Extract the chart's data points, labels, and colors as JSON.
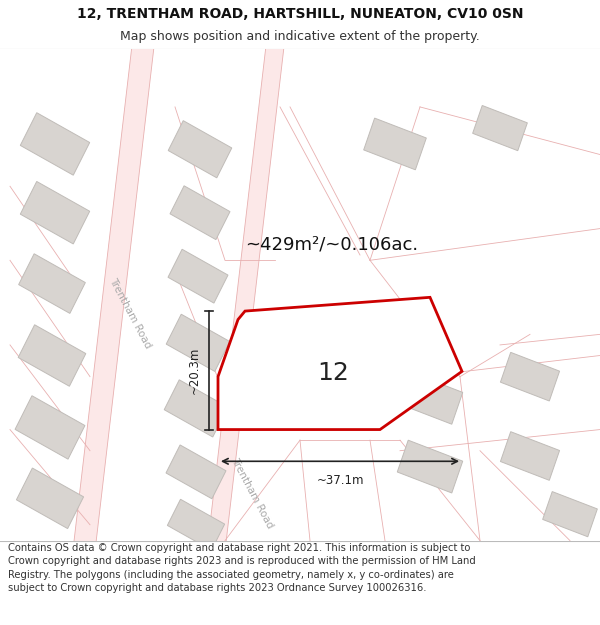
{
  "title_line1": "12, TRENTHAM ROAD, HARTSHILL, NUNEATON, CV10 0SN",
  "title_line2": "Map shows position and indicative extent of the property.",
  "footer_text": "Contains OS data © Crown copyright and database right 2021. This information is subject to Crown copyright and database rights 2023 and is reproduced with the permission of HM Land Registry. The polygons (including the associated geometry, namely x, y co-ordinates) are subject to Crown copyright and database rights 2023 Ordnance Survey 100026316.",
  "area_label": "~429m²/~0.106ac.",
  "number_label": "12",
  "width_label": "~37.1m",
  "height_label": "~20.3m",
  "map_bg": "#ffffff",
  "road_color": "#fce8e8",
  "road_stroke": "#e8b0b0",
  "building_fill": "#d8d4d0",
  "building_stroke": "#c0bcb8",
  "plot_fill": "#ffffff",
  "plot_stroke": "#cc0000",
  "dimension_color": "#222222",
  "road_label_color": "#aaaaaa",
  "title_fontsize": 10,
  "subtitle_fontsize": 9,
  "footer_fontsize": 7.2,
  "area_fontsize": 13,
  "number_fontsize": 18,
  "dim_fontsize": 8.5,
  "road_label_fontsize": 7.5
}
